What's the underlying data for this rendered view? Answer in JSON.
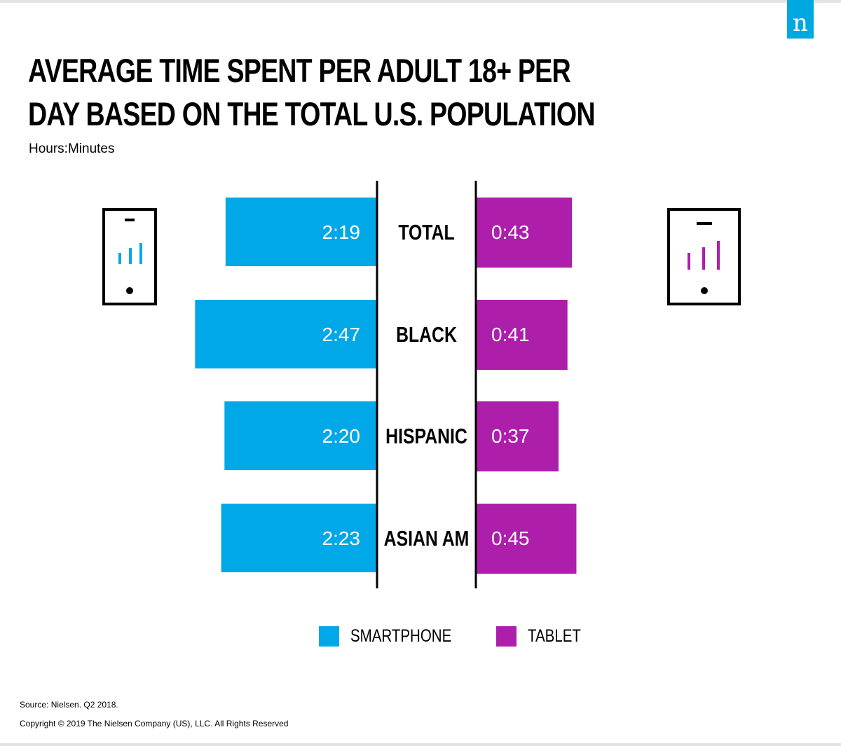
{
  "brand": {
    "logo_text": "n",
    "accent": "#00a8e1"
  },
  "title": "AVERAGE TIME SPENT PER ADULT 18+ PER DAY BASED ON THE TOTAL U.S. POPULATION",
  "subtitle": "Hours:Minutes",
  "icons": {
    "left": "smartphone-icon",
    "right": "tablet-icon"
  },
  "chart_data": {
    "type": "bar",
    "categories": [
      "TOTAL",
      "BLACK",
      "HISPANIC",
      "ASIAN AM"
    ],
    "series": [
      {
        "name": "SMARTPHONE",
        "color": "#00a8e8",
        "values": [
          139,
          167,
          140,
          143
        ],
        "labels": [
          "2:19",
          "2:47",
          "2:20",
          "2:23"
        ]
      },
      {
        "name": "TABLET",
        "color": "#ad1eab",
        "values": [
          43,
          41,
          37,
          45
        ],
        "labels": [
          "0:43",
          "0:41",
          "0:37",
          "0:45"
        ]
      }
    ],
    "unit": "minutes",
    "orientation": "horizontal-diverging"
  },
  "legend": [
    {
      "label": "SMARTPHONE",
      "color": "#00a8e8"
    },
    {
      "label": "TABLET",
      "color": "#ad1eab"
    }
  ],
  "footer": {
    "source": "Source: Nielsen. Q2 2018.",
    "copyright": "Copyright © 2019 The Nielsen Company (US), LLC. All Rights Reserved"
  }
}
